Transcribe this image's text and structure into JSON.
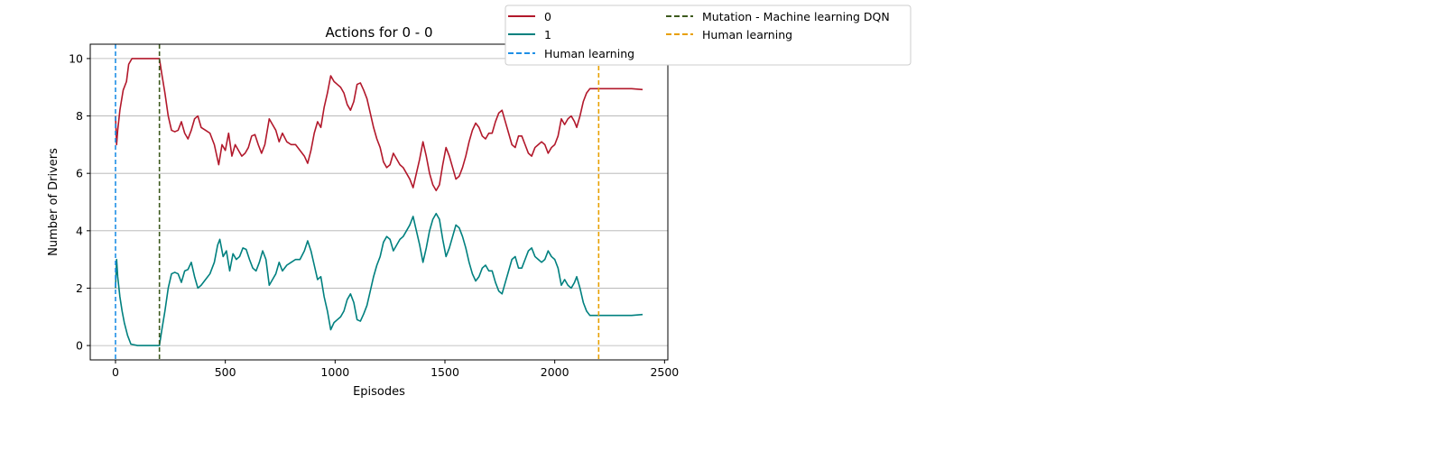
{
  "chart_data": {
    "type": "line",
    "title": "Actions for 0 - 0",
    "xlabel": "Episodes",
    "ylabel": "Number of Drivers",
    "xlim": [
      -115,
      2515
    ],
    "ylim": [
      -0.5,
      10.5
    ],
    "xticks": [
      0,
      500,
      1000,
      1500,
      2000,
      2500
    ],
    "yticks": [
      0,
      2,
      4,
      6,
      8,
      10
    ],
    "grid": "horizontal",
    "legend_position": "upper-right-outside",
    "series": [
      {
        "name": "0",
        "color": "#b2182b",
        "points": [
          [
            0,
            8.0
          ],
          [
            5,
            7.0
          ],
          [
            10,
            7.5
          ],
          [
            20,
            8.2
          ],
          [
            35,
            8.9
          ],
          [
            50,
            9.2
          ],
          [
            60,
            9.8
          ],
          [
            75,
            10.0
          ],
          [
            100,
            10.0
          ],
          [
            150,
            10.0
          ],
          [
            200,
            10.0
          ],
          [
            210,
            9.5
          ],
          [
            225,
            8.8
          ],
          [
            240,
            8.0
          ],
          [
            255,
            7.5
          ],
          [
            270,
            7.45
          ],
          [
            285,
            7.5
          ],
          [
            300,
            7.8
          ],
          [
            315,
            7.4
          ],
          [
            330,
            7.2
          ],
          [
            345,
            7.5
          ],
          [
            360,
            7.9
          ],
          [
            375,
            8.0
          ],
          [
            390,
            7.6
          ],
          [
            410,
            7.5
          ],
          [
            430,
            7.4
          ],
          [
            450,
            7.0
          ],
          [
            470,
            6.3
          ],
          [
            485,
            7.0
          ],
          [
            500,
            6.8
          ],
          [
            515,
            7.4
          ],
          [
            530,
            6.6
          ],
          [
            545,
            7.0
          ],
          [
            560,
            6.8
          ],
          [
            575,
            6.6
          ],
          [
            590,
            6.7
          ],
          [
            605,
            6.9
          ],
          [
            620,
            7.3
          ],
          [
            635,
            7.35
          ],
          [
            650,
            7.0
          ],
          [
            665,
            6.7
          ],
          [
            680,
            7.0
          ],
          [
            700,
            7.9
          ],
          [
            715,
            7.7
          ],
          [
            730,
            7.5
          ],
          [
            745,
            7.1
          ],
          [
            760,
            7.4
          ],
          [
            780,
            7.1
          ],
          [
            800,
            7.0
          ],
          [
            820,
            7.0
          ],
          [
            840,
            6.8
          ],
          [
            860,
            6.6
          ],
          [
            875,
            6.35
          ],
          [
            890,
            6.8
          ],
          [
            905,
            7.4
          ],
          [
            920,
            7.8
          ],
          [
            935,
            7.6
          ],
          [
            950,
            8.3
          ],
          [
            965,
            8.8
          ],
          [
            980,
            9.4
          ],
          [
            995,
            9.2
          ],
          [
            1010,
            9.1
          ],
          [
            1025,
            9.0
          ],
          [
            1040,
            8.8
          ],
          [
            1055,
            8.4
          ],
          [
            1070,
            8.2
          ],
          [
            1085,
            8.5
          ],
          [
            1100,
            9.1
          ],
          [
            1115,
            9.15
          ],
          [
            1130,
            8.9
          ],
          [
            1145,
            8.6
          ],
          [
            1160,
            8.1
          ],
          [
            1175,
            7.6
          ],
          [
            1190,
            7.2
          ],
          [
            1205,
            6.9
          ],
          [
            1220,
            6.4
          ],
          [
            1235,
            6.2
          ],
          [
            1250,
            6.3
          ],
          [
            1265,
            6.7
          ],
          [
            1280,
            6.5
          ],
          [
            1295,
            6.3
          ],
          [
            1310,
            6.2
          ],
          [
            1325,
            6.0
          ],
          [
            1340,
            5.8
          ],
          [
            1355,
            5.5
          ],
          [
            1370,
            6.0
          ],
          [
            1385,
            6.5
          ],
          [
            1400,
            7.1
          ],
          [
            1415,
            6.6
          ],
          [
            1430,
            6.0
          ],
          [
            1445,
            5.6
          ],
          [
            1460,
            5.4
          ],
          [
            1475,
            5.6
          ],
          [
            1490,
            6.3
          ],
          [
            1505,
            6.9
          ],
          [
            1520,
            6.6
          ],
          [
            1535,
            6.2
          ],
          [
            1550,
            5.8
          ],
          [
            1565,
            5.9
          ],
          [
            1580,
            6.2
          ],
          [
            1595,
            6.6
          ],
          [
            1610,
            7.1
          ],
          [
            1625,
            7.5
          ],
          [
            1640,
            7.75
          ],
          [
            1655,
            7.6
          ],
          [
            1670,
            7.3
          ],
          [
            1685,
            7.2
          ],
          [
            1700,
            7.4
          ],
          [
            1715,
            7.4
          ],
          [
            1730,
            7.8
          ],
          [
            1745,
            8.1
          ],
          [
            1760,
            8.2
          ],
          [
            1775,
            7.8
          ],
          [
            1790,
            7.4
          ],
          [
            1805,
            7.0
          ],
          [
            1820,
            6.9
          ],
          [
            1835,
            7.3
          ],
          [
            1850,
            7.3
          ],
          [
            1865,
            7.0
          ],
          [
            1880,
            6.7
          ],
          [
            1895,
            6.6
          ],
          [
            1910,
            6.9
          ],
          [
            1925,
            7.0
          ],
          [
            1940,
            7.1
          ],
          [
            1955,
            7.0
          ],
          [
            1970,
            6.7
          ],
          [
            1985,
            6.9
          ],
          [
            2000,
            7.0
          ],
          [
            2015,
            7.3
          ],
          [
            2030,
            7.9
          ],
          [
            2045,
            7.7
          ],
          [
            2060,
            7.9
          ],
          [
            2075,
            8.0
          ],
          [
            2090,
            7.8
          ],
          [
            2100,
            7.6
          ],
          [
            2115,
            8.0
          ],
          [
            2130,
            8.5
          ],
          [
            2145,
            8.8
          ],
          [
            2160,
            8.95
          ],
          [
            2200,
            8.95
          ],
          [
            2250,
            8.95
          ],
          [
            2300,
            8.95
          ],
          [
            2350,
            8.95
          ],
          [
            2400,
            8.92
          ]
        ]
      },
      {
        "name": "1",
        "color": "#00807f",
        "points": [
          [
            0,
            2.0
          ],
          [
            5,
            3.0
          ],
          [
            10,
            2.4
          ],
          [
            20,
            1.7
          ],
          [
            30,
            1.2
          ],
          [
            40,
            0.8
          ],
          [
            55,
            0.35
          ],
          [
            70,
            0.05
          ],
          [
            100,
            0.0
          ],
          [
            150,
            0.0
          ],
          [
            200,
            0.0
          ],
          [
            210,
            0.5
          ],
          [
            225,
            1.2
          ],
          [
            240,
            2.0
          ],
          [
            255,
            2.5
          ],
          [
            270,
            2.55
          ],
          [
            285,
            2.5
          ],
          [
            300,
            2.2
          ],
          [
            315,
            2.6
          ],
          [
            330,
            2.65
          ],
          [
            345,
            2.9
          ],
          [
            360,
            2.4
          ],
          [
            375,
            2.0
          ],
          [
            390,
            2.1
          ],
          [
            410,
            2.3
          ],
          [
            430,
            2.5
          ],
          [
            450,
            2.9
          ],
          [
            465,
            3.5
          ],
          [
            475,
            3.7
          ],
          [
            490,
            3.1
          ],
          [
            505,
            3.3
          ],
          [
            520,
            2.6
          ],
          [
            535,
            3.2
          ],
          [
            550,
            3.0
          ],
          [
            565,
            3.1
          ],
          [
            580,
            3.4
          ],
          [
            595,
            3.35
          ],
          [
            610,
            3.0
          ],
          [
            625,
            2.7
          ],
          [
            640,
            2.6
          ],
          [
            655,
            2.9
          ],
          [
            670,
            3.3
          ],
          [
            685,
            3.0
          ],
          [
            700,
            2.1
          ],
          [
            715,
            2.3
          ],
          [
            730,
            2.5
          ],
          [
            745,
            2.9
          ],
          [
            760,
            2.6
          ],
          [
            780,
            2.8
          ],
          [
            800,
            2.9
          ],
          [
            820,
            3.0
          ],
          [
            840,
            3.0
          ],
          [
            860,
            3.3
          ],
          [
            875,
            3.65
          ],
          [
            890,
            3.3
          ],
          [
            905,
            2.8
          ],
          [
            920,
            2.3
          ],
          [
            935,
            2.4
          ],
          [
            950,
            1.7
          ],
          [
            965,
            1.2
          ],
          [
            980,
            0.55
          ],
          [
            995,
            0.8
          ],
          [
            1010,
            0.9
          ],
          [
            1025,
            1.0
          ],
          [
            1040,
            1.2
          ],
          [
            1055,
            1.6
          ],
          [
            1070,
            1.8
          ],
          [
            1085,
            1.5
          ],
          [
            1100,
            0.9
          ],
          [
            1115,
            0.85
          ],
          [
            1130,
            1.1
          ],
          [
            1145,
            1.4
          ],
          [
            1160,
            1.9
          ],
          [
            1175,
            2.4
          ],
          [
            1190,
            2.8
          ],
          [
            1205,
            3.1
          ],
          [
            1220,
            3.6
          ],
          [
            1235,
            3.8
          ],
          [
            1250,
            3.7
          ],
          [
            1265,
            3.3
          ],
          [
            1280,
            3.5
          ],
          [
            1295,
            3.7
          ],
          [
            1310,
            3.8
          ],
          [
            1325,
            4.0
          ],
          [
            1340,
            4.2
          ],
          [
            1355,
            4.5
          ],
          [
            1370,
            4.0
          ],
          [
            1385,
            3.5
          ],
          [
            1400,
            2.9
          ],
          [
            1415,
            3.4
          ],
          [
            1430,
            4.0
          ],
          [
            1445,
            4.4
          ],
          [
            1460,
            4.6
          ],
          [
            1475,
            4.4
          ],
          [
            1490,
            3.7
          ],
          [
            1505,
            3.1
          ],
          [
            1520,
            3.4
          ],
          [
            1535,
            3.8
          ],
          [
            1550,
            4.2
          ],
          [
            1565,
            4.1
          ],
          [
            1580,
            3.8
          ],
          [
            1595,
            3.4
          ],
          [
            1610,
            2.9
          ],
          [
            1625,
            2.5
          ],
          [
            1640,
            2.25
          ],
          [
            1655,
            2.4
          ],
          [
            1670,
            2.7
          ],
          [
            1685,
            2.8
          ],
          [
            1700,
            2.6
          ],
          [
            1715,
            2.6
          ],
          [
            1730,
            2.2
          ],
          [
            1745,
            1.9
          ],
          [
            1760,
            1.8
          ],
          [
            1775,
            2.2
          ],
          [
            1790,
            2.6
          ],
          [
            1805,
            3.0
          ],
          [
            1820,
            3.1
          ],
          [
            1835,
            2.7
          ],
          [
            1850,
            2.7
          ],
          [
            1865,
            3.0
          ],
          [
            1880,
            3.3
          ],
          [
            1895,
            3.4
          ],
          [
            1910,
            3.1
          ],
          [
            1925,
            3.0
          ],
          [
            1940,
            2.9
          ],
          [
            1955,
            3.0
          ],
          [
            1970,
            3.3
          ],
          [
            1985,
            3.1
          ],
          [
            2000,
            3.0
          ],
          [
            2015,
            2.7
          ],
          [
            2030,
            2.1
          ],
          [
            2045,
            2.3
          ],
          [
            2060,
            2.1
          ],
          [
            2075,
            2.0
          ],
          [
            2090,
            2.2
          ],
          [
            2100,
            2.4
          ],
          [
            2115,
            2.0
          ],
          [
            2130,
            1.5
          ],
          [
            2145,
            1.2
          ],
          [
            2160,
            1.05
          ],
          [
            2200,
            1.05
          ],
          [
            2250,
            1.05
          ],
          [
            2300,
            1.05
          ],
          [
            2350,
            1.05
          ],
          [
            2400,
            1.08
          ]
        ]
      }
    ],
    "vlines": [
      {
        "name": "Human learning",
        "x": 0,
        "color": "#1f8fe6"
      },
      {
        "name": "Mutation - Machine learning DQN",
        "x": 200,
        "color": "#3d5a1e"
      },
      {
        "name": "Human learning",
        "x": 2200,
        "color": "#e8a000"
      }
    ]
  }
}
